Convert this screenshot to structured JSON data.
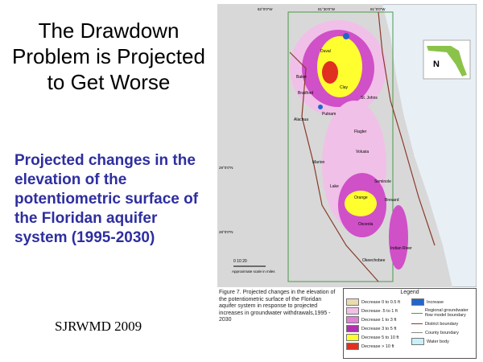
{
  "header": {
    "title": "The Drawdown Problem is Projected to Get Worse",
    "subtitle": "Projected changes in the elevation of the potentiometric surface of the Floridan aquifer system (1995-2030)",
    "credit": "SJRWMD 2009"
  },
  "figure": {
    "caption": "Figure 7.  Projected changes in the elevation of the potentiometric surface of the Floridan aquifer system in response to projected increases in groundwater withdrawals,1995 - 2030"
  },
  "map": {
    "north": "N",
    "scale_ticks": "0   10   20",
    "scale_label": "Approximate scale in miles",
    "coords": [
      "82°0'0\"W",
      "81°30'0\"W",
      "81°0'0\"W",
      "29°0'0\"N",
      "28°0'0\"N"
    ],
    "counties": [
      "Baker",
      "Duval",
      "Bradford",
      "Clay",
      "St. Johns",
      "Alachua",
      "Putnam",
      "Flagler",
      "Marion",
      "Volusia",
      "Lake",
      "Seminole",
      "Orange",
      "Brevard",
      "Osceola",
      "Indian River",
      "Okeechobee"
    ]
  },
  "legend": {
    "title": "Legend",
    "items": [
      "Decrease 0 to 0.5 ft",
      "Decrease .5 to 1 ft",
      "Decrease 1 to 3 ft",
      "Decrease 3 to 5 ft",
      "Decrease 5 to 10 ft",
      "Decrease > 10 ft"
    ],
    "others": [
      "Increase",
      "Regional groundwater flow model boundary",
      "District boundary",
      "County boundary",
      "Water body"
    ]
  }
}
